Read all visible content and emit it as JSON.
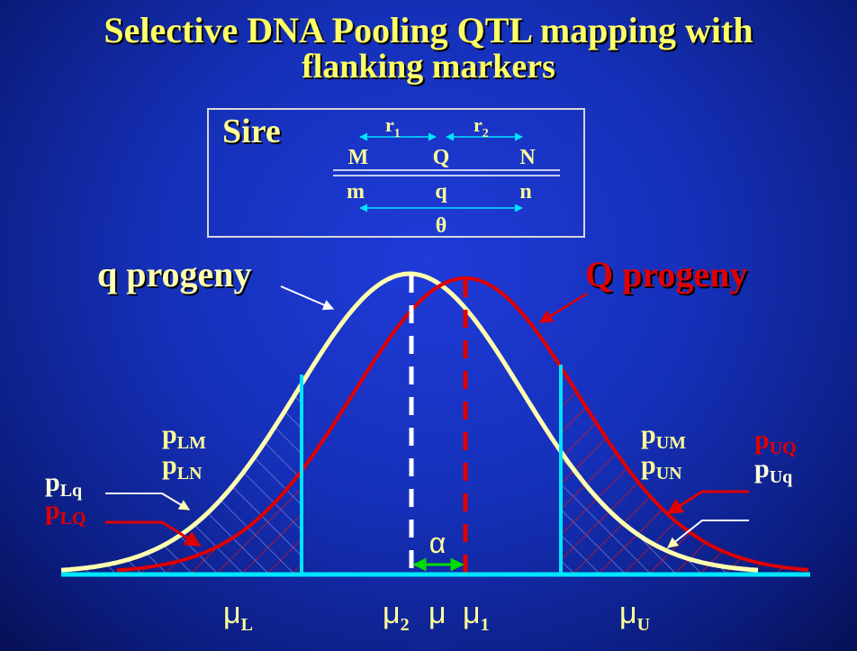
{
  "title_line1": "Selective DNA Pooling QTL mapping with",
  "title_line2": "flanking markers",
  "sire": {
    "label": "Sire",
    "r1": "r",
    "r1_sub": "1",
    "r2": "r",
    "r2_sub": "2",
    "top_alleles": [
      "M",
      "Q",
      "N"
    ],
    "bottom_alleles": [
      "m",
      "q",
      "n"
    ],
    "theta": "θ"
  },
  "curves": {
    "q_label": "q progeny",
    "Q_label": "Q progeny"
  },
  "left_labels": {
    "pLM": "p",
    "pLM_sub": "LM",
    "pLN": "p",
    "pLN_sub": "LN",
    "pLq": "p",
    "pLq_sub": "Lq",
    "pLQ": "p",
    "pLQ_sub": "LQ"
  },
  "right_labels": {
    "pUM": "p",
    "pUM_sub": "UM",
    "pUN": "p",
    "pUN_sub": "UN",
    "pUQ": "p",
    "pUQ_sub": "UQ",
    "pUq": "p",
    "pUq_sub": "Uq"
  },
  "alpha": "α",
  "axis": {
    "muL": "μ",
    "muL_sub": "L",
    "mu2": "μ",
    "mu2_sub": "2",
    "mu": "μ",
    "mu1": "μ",
    "mu1_sub": "1",
    "muU": "μ",
    "muU_sub": "U"
  },
  "colors": {
    "title": "#ffff66",
    "q_curve": "#ffffb0",
    "Q_curve": "#e00000",
    "threshold": "#00e5ff",
    "alpha_arrow": "#00dd00"
  }
}
